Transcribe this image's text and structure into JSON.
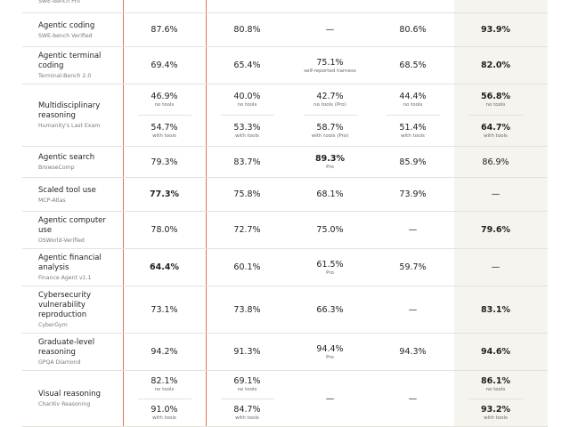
{
  "table": {
    "rows": [
      {
        "subtitle": "SWE-bench Pro",
        "cells": []
      },
      {
        "title": "Agentic coding",
        "subtitle": "SWE-bench Verified",
        "cells": [
          {
            "entries": [
              {
                "value": "87.6%"
              }
            ]
          },
          {
            "entries": [
              {
                "value": "80.8%"
              }
            ]
          },
          {
            "entries": [
              {
                "value": "—"
              }
            ]
          },
          {
            "entries": [
              {
                "value": "80.6%"
              }
            ]
          },
          {
            "bold": true,
            "entries": [
              {
                "value": "93.9%"
              }
            ]
          }
        ]
      },
      {
        "title": "Agentic terminal coding",
        "subtitle": "Terminal-Bench 2.0",
        "cells": [
          {
            "entries": [
              {
                "value": "69.4%"
              }
            ]
          },
          {
            "entries": [
              {
                "value": "65.4%"
              }
            ]
          },
          {
            "entries": [
              {
                "value": "75.1%",
                "note": "self-reported harness"
              }
            ]
          },
          {
            "entries": [
              {
                "value": "68.5%"
              }
            ]
          },
          {
            "bold": true,
            "entries": [
              {
                "value": "82.0%"
              }
            ]
          }
        ]
      },
      {
        "title": "Multidisciplinary reasoning",
        "subtitle": "Humanity's Last Exam",
        "cells": [
          {
            "entries": [
              {
                "value": "46.9%",
                "note": "no tools"
              },
              {
                "value": "54.7%",
                "note": "with tools"
              }
            ]
          },
          {
            "entries": [
              {
                "value": "40.0%",
                "note": "no tools"
              },
              {
                "value": "53.3%",
                "note": "with tools"
              }
            ]
          },
          {
            "entries": [
              {
                "value": "42.7%",
                "note": "no tools (Pro)"
              },
              {
                "value": "58.7%",
                "note": "with tools (Pro)"
              }
            ]
          },
          {
            "entries": [
              {
                "value": "44.4%",
                "note": "no tools"
              },
              {
                "value": "51.4%",
                "note": "with tools"
              }
            ]
          },
          {
            "bold": true,
            "entries": [
              {
                "value": "56.8%",
                "note": "no tools"
              },
              {
                "value": "64.7%",
                "note": "with tools"
              }
            ]
          }
        ]
      },
      {
        "title": "Agentic search",
        "subtitle": "BrowseComp",
        "cells": [
          {
            "entries": [
              {
                "value": "79.3%"
              }
            ]
          },
          {
            "entries": [
              {
                "value": "83.7%"
              }
            ]
          },
          {
            "bold": true,
            "entries": [
              {
                "value": "89.3%",
                "note": "Pro"
              }
            ]
          },
          {
            "entries": [
              {
                "value": "85.9%"
              }
            ]
          },
          {
            "entries": [
              {
                "value": "86.9%"
              }
            ]
          }
        ]
      },
      {
        "title": "Scaled tool use",
        "subtitle": "MCP-Atlas",
        "cells": [
          {
            "bold": true,
            "entries": [
              {
                "value": "77.3%"
              }
            ]
          },
          {
            "entries": [
              {
                "value": "75.8%"
              }
            ]
          },
          {
            "entries": [
              {
                "value": "68.1%"
              }
            ]
          },
          {
            "entries": [
              {
                "value": "73.9%"
              }
            ]
          },
          {
            "entries": [
              {
                "value": "—"
              }
            ]
          }
        ]
      },
      {
        "title": "Agentic computer use",
        "subtitle": "OSWorld-Verified",
        "cells": [
          {
            "entries": [
              {
                "value": "78.0%"
              }
            ]
          },
          {
            "entries": [
              {
                "value": "72.7%"
              }
            ]
          },
          {
            "entries": [
              {
                "value": "75.0%"
              }
            ]
          },
          {
            "entries": [
              {
                "value": "—"
              }
            ]
          },
          {
            "bold": true,
            "entries": [
              {
                "value": "79.6%"
              }
            ]
          }
        ]
      },
      {
        "title": "Agentic financial analysis",
        "subtitle": "Finance Agent v1.1",
        "cells": [
          {
            "bold": true,
            "entries": [
              {
                "value": "64.4%"
              }
            ]
          },
          {
            "entries": [
              {
                "value": "60.1%"
              }
            ]
          },
          {
            "entries": [
              {
                "value": "61.5%",
                "note": "Pro"
              }
            ]
          },
          {
            "entries": [
              {
                "value": "59.7%"
              }
            ]
          },
          {
            "entries": [
              {
                "value": "—"
              }
            ]
          }
        ]
      },
      {
        "title": "Cybersecurity vulnerability reproduction",
        "subtitle": "CyberGym",
        "cells": [
          {
            "entries": [
              {
                "value": "73.1%"
              }
            ]
          },
          {
            "entries": [
              {
                "value": "73.8%"
              }
            ]
          },
          {
            "entries": [
              {
                "value": "66.3%"
              }
            ]
          },
          {
            "entries": [
              {
                "value": "—"
              }
            ]
          },
          {
            "bold": true,
            "entries": [
              {
                "value": "83.1%"
              }
            ]
          }
        ]
      },
      {
        "title": "Graduate-level reasoning",
        "subtitle": "GPQA Diamond",
        "cells": [
          {
            "entries": [
              {
                "value": "94.2%"
              }
            ]
          },
          {
            "entries": [
              {
                "value": "91.3%"
              }
            ]
          },
          {
            "entries": [
              {
                "value": "94.4%",
                "note": "Pro"
              }
            ]
          },
          {
            "entries": [
              {
                "value": "94.3%"
              }
            ]
          },
          {
            "bold": true,
            "entries": [
              {
                "value": "94.6%"
              }
            ]
          }
        ]
      },
      {
        "title": "Visual reasoning",
        "subtitle": "CharXiv Reasoning",
        "cells": [
          {
            "entries": [
              {
                "value": "82.1%",
                "note": "no tools"
              },
              {
                "value": "91.0%",
                "note": "with tools"
              }
            ]
          },
          {
            "entries": [
              {
                "value": "69.1%",
                "note": "no tools"
              },
              {
                "value": "84.7%",
                "note": "with tools"
              }
            ]
          },
          {
            "entries": [
              {
                "value": "—"
              }
            ]
          },
          {
            "entries": [
              {
                "value": "—"
              }
            ]
          },
          {
            "bold": true,
            "entries": [
              {
                "value": "86.1%",
                "note": "no tools"
              },
              {
                "value": "93.2%",
                "note": "with tools"
              }
            ]
          }
        ]
      }
    ]
  }
}
